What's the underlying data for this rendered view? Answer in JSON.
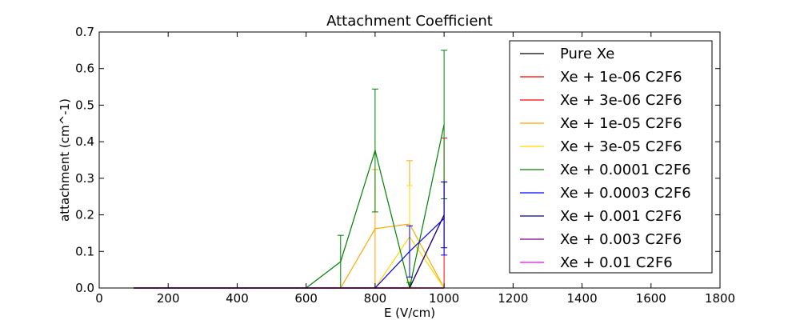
{
  "chart_data": {
    "type": "line",
    "title": "Attachment Coefficient",
    "xlabel": "E (V/cm)",
    "ylabel": "attachment (cm^-1)",
    "xlim": [
      0,
      1800
    ],
    "ylim": [
      0,
      0.7
    ],
    "xticks": [
      "0",
      "200",
      "400",
      "600",
      "800",
      "1000",
      "1200",
      "1400",
      "1600",
      "1800"
    ],
    "yticks": [
      "0.0",
      "0.1",
      "0.2",
      "0.3",
      "0.4",
      "0.5",
      "0.6",
      "0.7"
    ],
    "grid": false,
    "legend_position": "top-right",
    "series": [
      {
        "name": "Pure Xe",
        "color": "#000000",
        "x": [
          100,
          200,
          300,
          400,
          500,
          600,
          700,
          800,
          900,
          1000
        ],
        "y": [
          0,
          0,
          0,
          0,
          0,
          0,
          0,
          0,
          0,
          0
        ],
        "err": [
          0,
          0,
          0,
          0,
          0,
          0,
          0,
          0,
          0,
          0
        ]
      },
      {
        "name": "Xe + 1e-06 C2F6",
        "color": "#ff0000",
        "x": [
          100,
          200,
          300,
          400,
          500,
          600,
          700,
          800,
          900,
          1000
        ],
        "y": [
          0,
          0,
          0,
          0,
          0,
          0,
          0,
          0,
          0,
          0.2
        ],
        "err": [
          0,
          0,
          0,
          0,
          0,
          0,
          0,
          0,
          0,
          0.21
        ]
      },
      {
        "name": "Xe + 3e-06 C2F6",
        "color": "#ff0000",
        "x": [
          100,
          200,
          300,
          400,
          500,
          600,
          700,
          800,
          900,
          1000
        ],
        "y": [
          0,
          0,
          0,
          0,
          0,
          0,
          0,
          0,
          0,
          0
        ],
        "err": [
          0,
          0,
          0,
          0,
          0,
          0,
          0,
          0,
          0,
          0
        ]
      },
      {
        "name": "Xe + 1e-05 C2F6",
        "color": "#ffa500",
        "x": [
          100,
          200,
          300,
          400,
          500,
          600,
          700,
          800,
          900,
          1000
        ],
        "y": [
          0,
          0,
          0,
          0,
          0,
          0,
          0,
          0.162,
          0.175,
          0
        ],
        "err": [
          0,
          0,
          0,
          0,
          0,
          0,
          0,
          0.162,
          0.173,
          0
        ]
      },
      {
        "name": "Xe + 3e-05 C2F6",
        "color": "#ffd700",
        "x": [
          100,
          200,
          300,
          400,
          500,
          600,
          700,
          800,
          900,
          1000
        ],
        "y": [
          0,
          0,
          0,
          0,
          0,
          0,
          0,
          0,
          0.14,
          0
        ],
        "err": [
          0,
          0,
          0,
          0,
          0,
          0,
          0,
          0,
          0.14,
          0
        ]
      },
      {
        "name": "Xe + 0.0001 C2F6",
        "color": "#008000",
        "x": [
          100,
          200,
          300,
          400,
          500,
          600,
          700,
          800,
          900,
          1000
        ],
        "y": [
          0,
          0,
          0,
          0,
          0,
          0,
          0.072,
          0.376,
          0,
          0.447
        ],
        "err": [
          0,
          0,
          0,
          0,
          0,
          0,
          0.072,
          0.168,
          0.015,
          0.203
        ]
      },
      {
        "name": "Xe + 0.0003 C2F6",
        "color": "#0000ff",
        "x": [
          100,
          200,
          300,
          400,
          500,
          600,
          700,
          800,
          900,
          1000
        ],
        "y": [
          0,
          0,
          0,
          0,
          0,
          0,
          0,
          0,
          0.1,
          0.19
        ],
        "err": [
          0,
          0,
          0,
          0,
          0,
          0,
          0,
          0,
          0.07,
          0.1
        ]
      },
      {
        "name": "Xe + 0.001 C2F6",
        "color": "#00008b",
        "x": [
          100,
          200,
          300,
          400,
          500,
          600,
          700,
          800,
          900,
          1000
        ],
        "y": [
          0,
          0,
          0,
          0,
          0,
          0,
          0,
          0,
          0,
          0.2
        ],
        "err": [
          0,
          0,
          0,
          0,
          0,
          0,
          0,
          0,
          0,
          0.09
        ]
      },
      {
        "name": "Xe + 0.003 C2F6",
        "color": "#800080",
        "x": [
          100,
          200,
          300,
          400,
          500,
          600,
          700,
          800,
          900,
          1000
        ],
        "y": [
          0,
          0,
          0,
          0,
          0,
          0,
          0,
          0,
          0,
          0
        ],
        "err": [
          0,
          0,
          0,
          0,
          0,
          0,
          0,
          0,
          0,
          0
        ]
      },
      {
        "name": "Xe + 0.01 C2F6",
        "color": "#ff00ff",
        "x": [
          100,
          200,
          300,
          400,
          500,
          600,
          700,
          800,
          900,
          1000
        ],
        "y": [
          0,
          0,
          0,
          0,
          0,
          0,
          0,
          0,
          0,
          0
        ],
        "err": [
          0,
          0,
          0,
          0,
          0,
          0,
          0,
          0,
          0,
          0
        ]
      }
    ]
  }
}
